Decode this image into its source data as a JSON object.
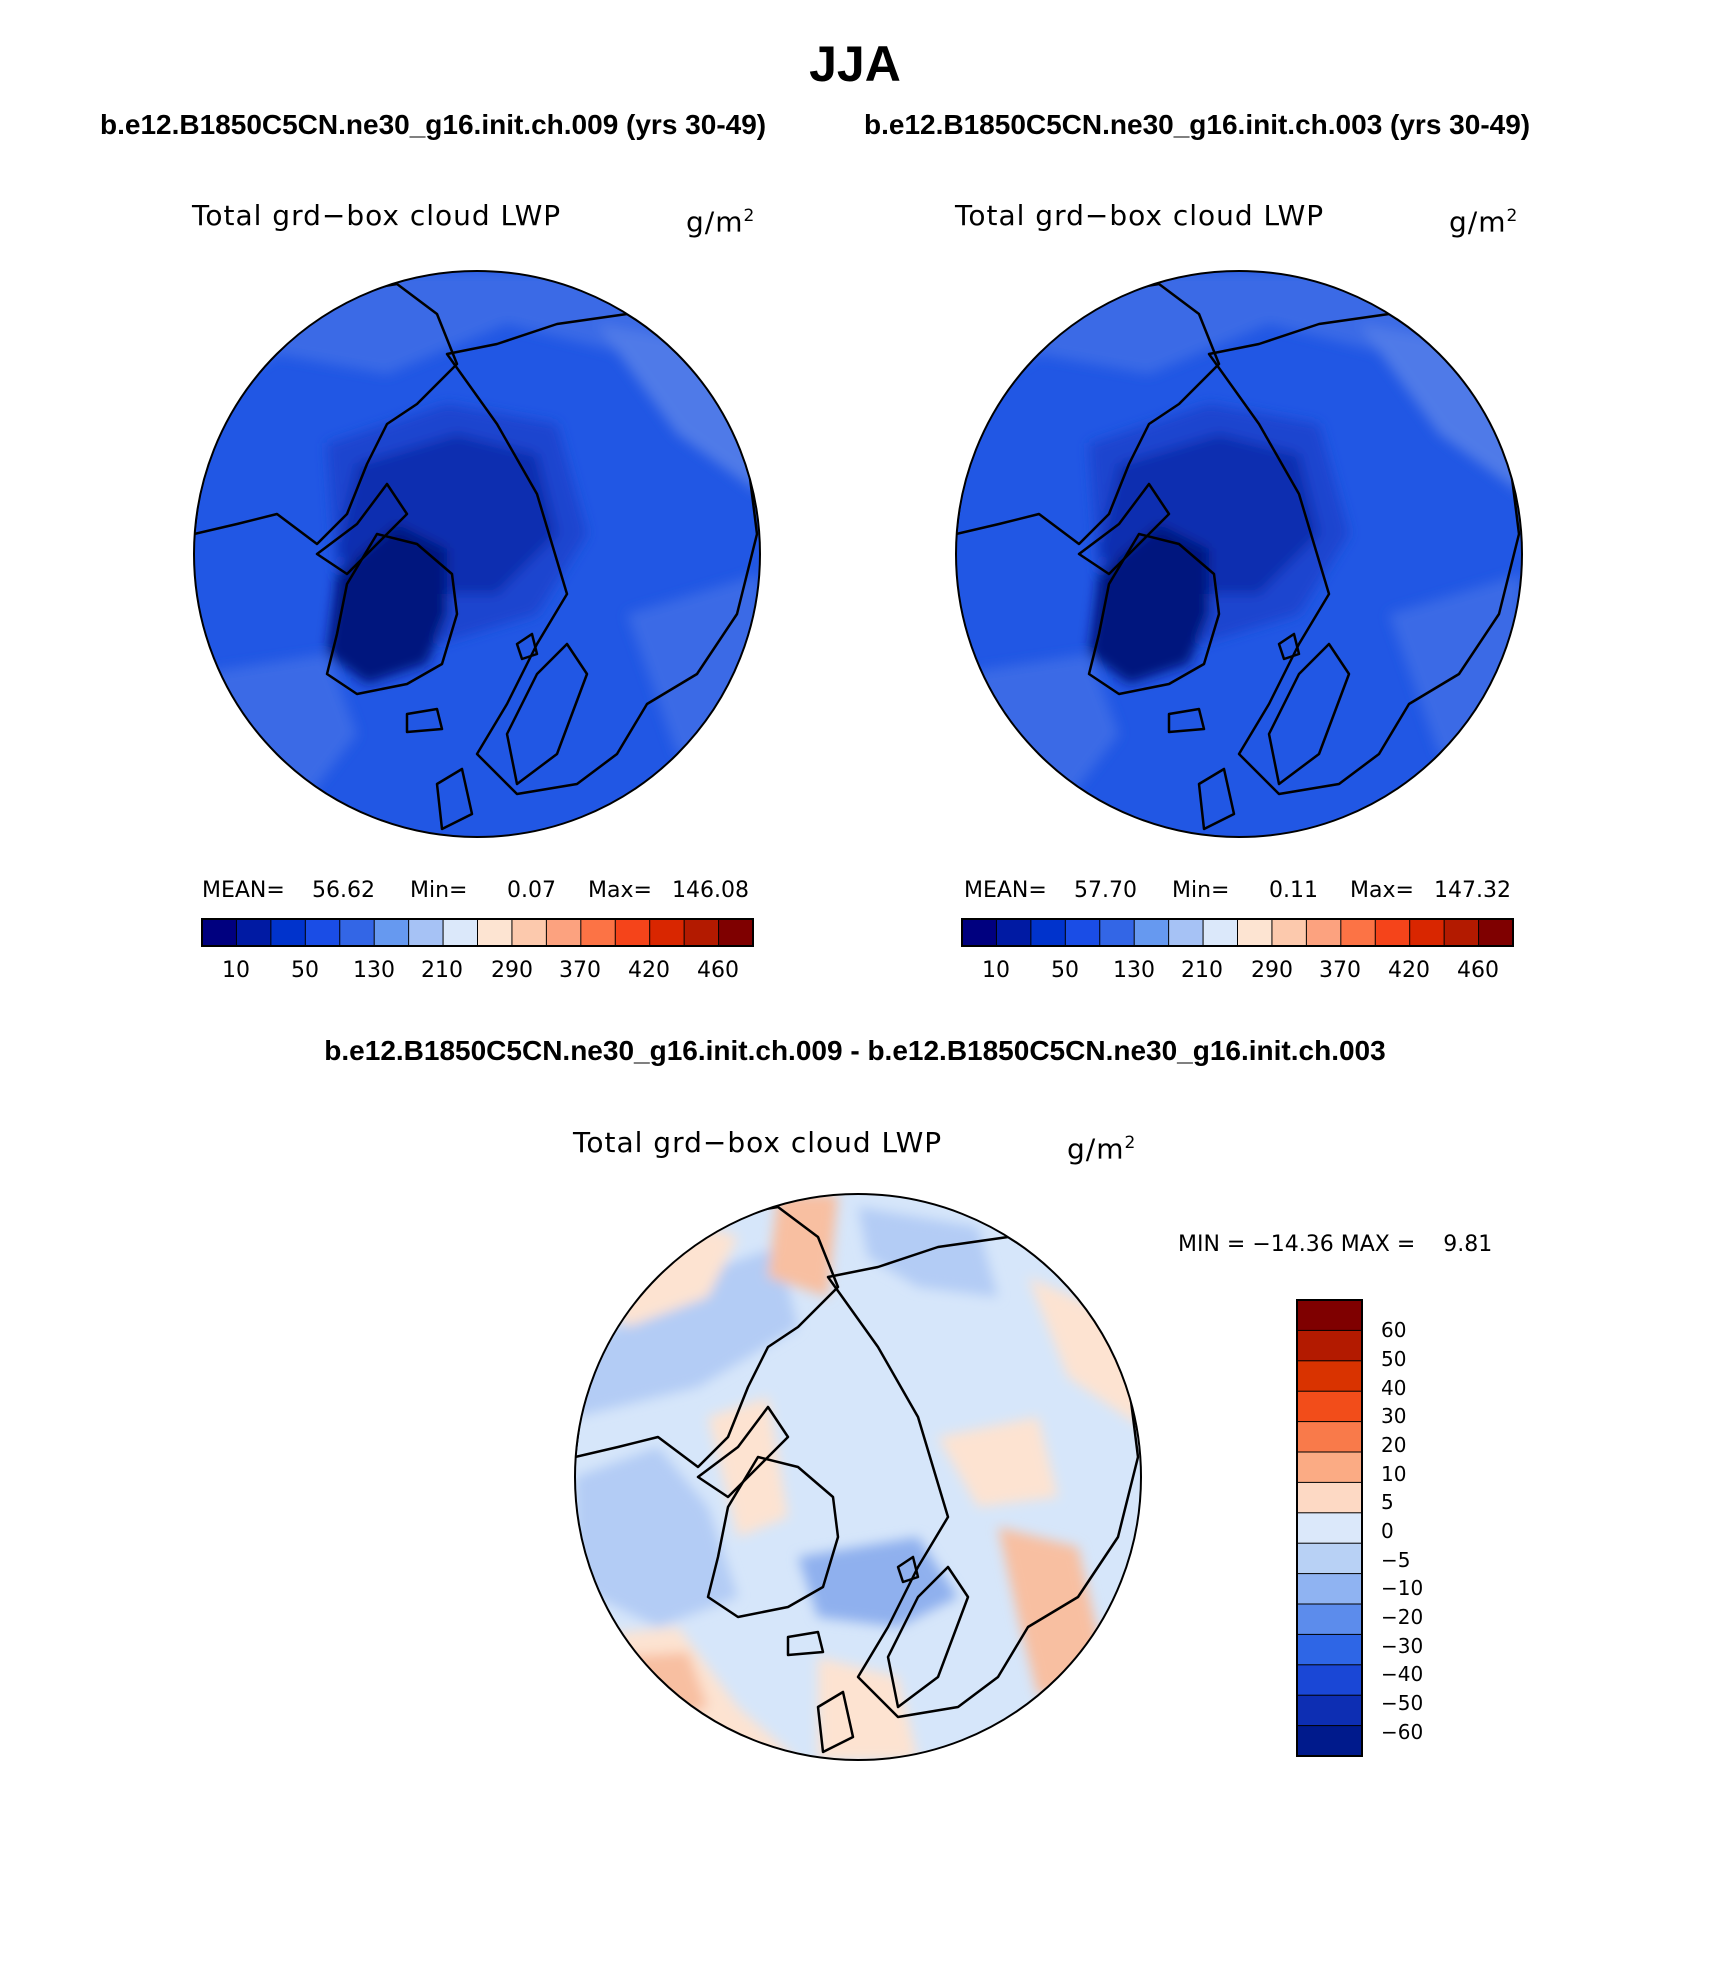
{
  "main_title": "JJA",
  "panels": [
    {
      "subtitle": "b.e12.B1850C5CN.ne30_g16.init.ch.009 (yrs 30-49)",
      "var_title": "Total grd−box cloud LWP",
      "units_base": "g/m",
      "units_sup": "2",
      "stats": {
        "mean_label": "MEAN=",
        "mean": "56.62",
        "min_label": "Min=",
        "min": "0.07",
        "max_label": "Max=",
        "max": "146.08"
      }
    },
    {
      "subtitle": "b.e12.B1850C5CN.ne30_g16.init.ch.003 (yrs 30-49)",
      "var_title": "Total grd−box cloud LWP",
      "units_base": "g/m",
      "units_sup": "2",
      "stats": {
        "mean_label": "MEAN=",
        "mean": "57.70",
        "min_label": "Min=",
        "min": "0.11",
        "max_label": "Max=",
        "max": "147.32"
      }
    }
  ],
  "abs_colorbar": {
    "colors": [
      "#00007f",
      "#001aa3",
      "#0033cc",
      "#1a4de6",
      "#3366e6",
      "#6699f0",
      "#a6c2f5",
      "#dbe8fa",
      "#fde4d2",
      "#fcc9ad",
      "#fca27f",
      "#fc7345",
      "#f5441a",
      "#d92600",
      "#b31a00",
      "#7f0000"
    ],
    "labels": [
      "10",
      "50",
      "130",
      "210",
      "290",
      "370",
      "420",
      "460"
    ]
  },
  "diff": {
    "title": "b.e12.B1850C5CN.ne30_g16.init.ch.009 - b.e12.B1850C5CN.ne30_g16.init.ch.003",
    "var_title": "Total grd−box cloud LWP",
    "units_base": "g/m",
    "units_sup": "2",
    "minmax": "MIN = −14.36 MAX =    9.81",
    "colorbar": {
      "colors": [
        "#7f0000",
        "#b31a00",
        "#d93300",
        "#f24d1a",
        "#f97a4a",
        "#fbab84",
        "#fdd9c4",
        "#dbe8fa",
        "#b8d1f5",
        "#8fb3f2",
        "#5c8cec",
        "#2e66e6",
        "#1a47d6",
        "#0d2eb3",
        "#001a8c"
      ],
      "labels": [
        "60",
        "50",
        "40",
        "30",
        "20",
        "10",
        "5",
        "0",
        "−5",
        "−10",
        "−20",
        "−30",
        "−40",
        "−50",
        "−60"
      ]
    }
  },
  "map_colors": {
    "abs_base": "#2157e4",
    "abs_light": "#3a6ae6",
    "abs_lighter": "#4f7ae8",
    "abs_mid": "#1a44cf",
    "abs_dark": "#0f2fb0",
    "abs_darkest": "#04147e",
    "diff_base": "#d6e6fa",
    "diff_blue": "#b3ccf5",
    "diff_blue2": "#8fb0ee",
    "diff_peach": "#fde3d1",
    "diff_orange": "#f8bfa1",
    "coast": "#000000"
  }
}
